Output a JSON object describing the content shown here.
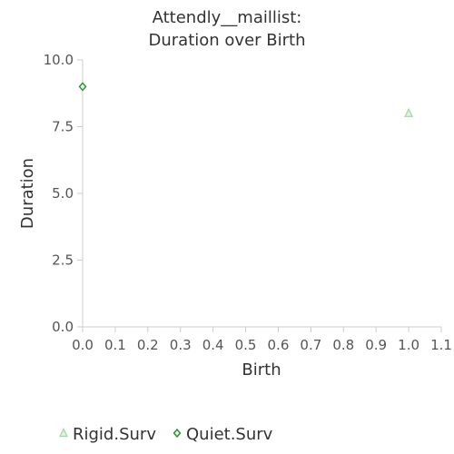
{
  "chart_data": {
    "type": "scatter",
    "title_lines": [
      "Attendly__maillist:",
      "Duration over Birth"
    ],
    "xlabel": "Birth",
    "ylabel": "Duration",
    "xlim": [
      0.0,
      1.1
    ],
    "ylim": [
      0.0,
      10.0
    ],
    "x_ticks": [
      "0.0",
      "0.1",
      "0.2",
      "0.3",
      "0.4",
      "0.5",
      "0.6",
      "0.7",
      "0.8",
      "0.9",
      "1.0",
      "1.1"
    ],
    "y_ticks": [
      "0.0",
      "2.5",
      "5.0",
      "7.5",
      "10.0"
    ],
    "grid": false,
    "legend_position": "bottom-left",
    "series": [
      {
        "name": "Rigid.Surv",
        "marker": "triangle",
        "color": "#9ed99e",
        "points": [
          {
            "x": 1.0,
            "y": 8.0
          }
        ]
      },
      {
        "name": "Quiet.Surv",
        "marker": "diamond",
        "color": "#2e8b2e",
        "points": [
          {
            "x": 0.0,
            "y": 9.0
          }
        ]
      }
    ]
  }
}
